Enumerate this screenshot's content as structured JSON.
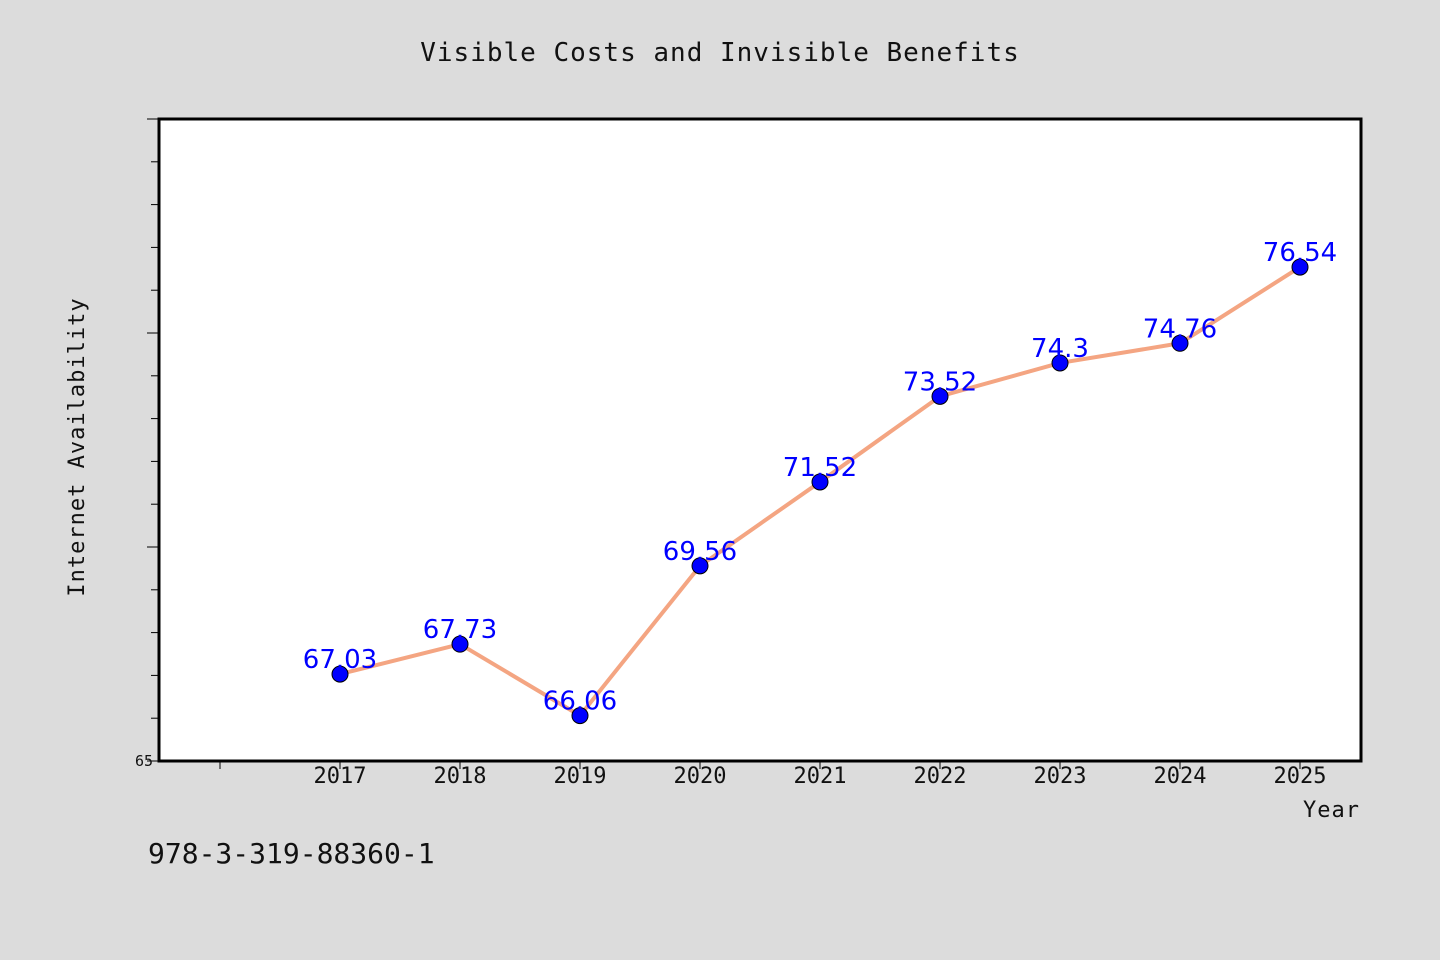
{
  "footer": {
    "isbn": "978-3-319-88360-1"
  },
  "colors": {
    "background": "#dcdcdc",
    "plot_background": "#ffffff",
    "line": "#f4a582",
    "marker": "#0000ff",
    "label": "#0000ff"
  },
  "chart_data": {
    "type": "line",
    "title": "Visible Costs and Invisible Benefits",
    "xlabel": "Year",
    "ylabel": "Internet Availability",
    "x": [
      "2017",
      "2018",
      "2019",
      "2020",
      "2021",
      "2022",
      "2023",
      "2024",
      "2025"
    ],
    "series": [
      {
        "values": [
          67.03,
          67.73,
          66.06,
          69.56,
          71.52,
          73.52,
          74.3,
          74.76,
          76.54
        ]
      }
    ],
    "data_labels": [
      "67.03",
      "67.73",
      "66.06",
      "69.56",
      "71.52",
      "73.52",
      "74.3",
      "74.76",
      "76.54"
    ],
    "yticks_labeled": [
      "65"
    ],
    "ylim": [
      65,
      80
    ],
    "grid": false,
    "legend": "none"
  }
}
